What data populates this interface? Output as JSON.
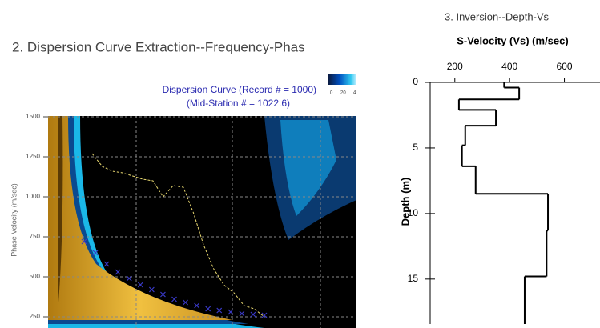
{
  "sections": [
    "2. Dispersion Curve Extraction--Frequency-Phas",
    "3. Inversion--Depth-Vs"
  ],
  "chart_data": [
    {
      "type": "dispersion",
      "title": [
        "Dispersion Curve (Record # = 1000)",
        "(Mid-Station # = 1022.6)"
      ],
      "ylabel": "Phase Velocity (m/sec)",
      "ylim": [
        230,
        1505
      ],
      "yticks": [
        250,
        500,
        750,
        1000,
        1250,
        1500
      ],
      "grid": true,
      "colorbar_labels": [
        "0",
        "20",
        "4"
      ],
      "series": [
        {
          "color": "#3a3ac8",
          "values": [
            720,
            650,
            580,
            530,
            490,
            450,
            420,
            390,
            360,
            340,
            320,
            300,
            290,
            280,
            270,
            265,
            260
          ]
        },
        {
          "color": "#e8d870",
          "values": [
            1270,
            1190,
            1160,
            1150,
            1130,
            1110,
            1100,
            1000,
            1070,
            1060,
            900,
            700,
            550,
            450,
            400,
            320,
            300,
            250
          ]
        }
      ]
    },
    {
      "type": "step",
      "title": "S-Velocity (Vs) (m/sec)",
      "ylabel": "Depth (m)",
      "xlim": [
        110,
        730
      ],
      "xticks": [
        200,
        400,
        600
      ],
      "ylim": [
        0,
        18
      ],
      "yticks": [
        0,
        5,
        10,
        15
      ],
      "color": "#000000",
      "depths": [
        0,
        0.4,
        1.3,
        2.1,
        3.3,
        4.8,
        6.4,
        8.5,
        11.3,
        14.8
      ],
      "values": [
        380,
        435,
        215,
        350,
        238,
        226,
        276,
        540,
        535,
        455
      ]
    }
  ]
}
